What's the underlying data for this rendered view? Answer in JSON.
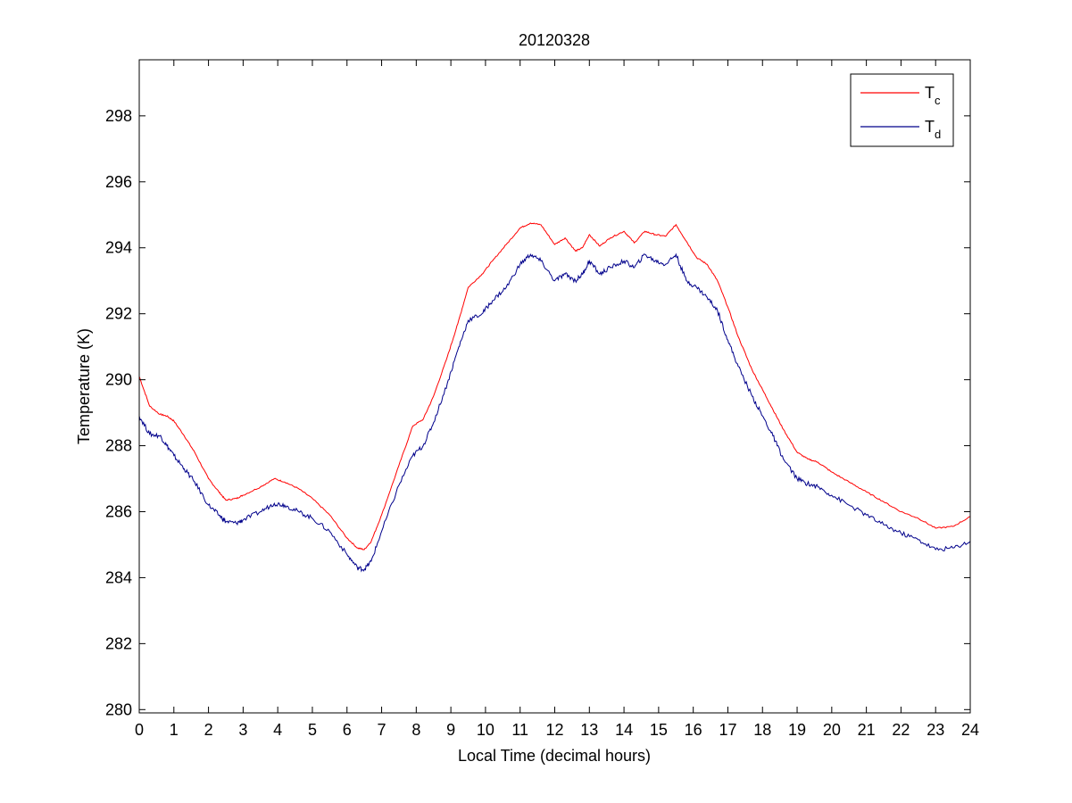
{
  "chart_data": {
    "type": "line",
    "title": "20120328",
    "xlabel": "Local Time (decimal hours)",
    "ylabel": "Temperature (K)",
    "xlim": [
      0,
      24
    ],
    "ylim": [
      279.9,
      299.7
    ],
    "xticks": [
      0,
      1,
      2,
      3,
      4,
      5,
      6,
      7,
      8,
      9,
      10,
      11,
      12,
      13,
      14,
      15,
      16,
      17,
      18,
      19,
      20,
      21,
      22,
      23,
      24
    ],
    "yticks": [
      280,
      282,
      284,
      286,
      288,
      290,
      292,
      294,
      296,
      298
    ],
    "grid": false,
    "legend_position": "top-right",
    "series": [
      {
        "name": "Tc",
        "color": "#ff0000",
        "x": [
          0,
          0.3,
          0.6,
          0.8,
          1,
          1.3,
          1.6,
          2,
          2.3,
          2.5,
          2.8,
          3,
          3.5,
          3.9,
          4.2,
          4.6,
          5,
          5.5,
          6,
          6.3,
          6.5,
          6.7,
          7,
          7.5,
          7.9,
          8.2,
          8.5,
          8.9,
          9.2,
          9.5,
          9.9,
          10.2,
          10.6,
          11,
          11.3,
          11.6,
          12,
          12.3,
          12.6,
          12.8,
          13,
          13.3,
          13.6,
          14,
          14.3,
          14.6,
          14.9,
          15.2,
          15.5,
          15.8,
          16.1,
          16.4,
          16.7,
          17,
          17.3,
          17.7,
          18,
          18.3,
          18.6,
          19,
          19.3,
          19.6,
          20,
          20.5,
          21,
          21.5,
          22,
          22.5,
          23,
          23.5,
          24
        ],
        "y": [
          290.1,
          289.2,
          288.95,
          288.9,
          288.75,
          288.3,
          287.8,
          287.0,
          286.6,
          286.35,
          286.4,
          286.5,
          286.75,
          287.0,
          286.9,
          286.7,
          286.4,
          285.9,
          285.2,
          284.9,
          284.85,
          285.1,
          285.9,
          287.4,
          288.6,
          288.8,
          289.5,
          290.7,
          291.7,
          292.8,
          293.2,
          293.6,
          294.1,
          294.6,
          294.75,
          294.7,
          294.1,
          294.3,
          293.9,
          294.0,
          294.4,
          294.05,
          294.3,
          294.5,
          294.15,
          294.5,
          294.4,
          294.35,
          294.7,
          294.2,
          293.7,
          293.5,
          293.0,
          292.2,
          291.3,
          290.3,
          289.7,
          289.1,
          288.5,
          287.8,
          287.6,
          287.5,
          287.2,
          286.9,
          286.6,
          286.3,
          286.0,
          285.8,
          285.5,
          285.55,
          285.85
        ]
      },
      {
        "name": "Td",
        "color": "#00008b",
        "x": [
          0,
          0.3,
          0.6,
          0.8,
          1,
          1.3,
          1.6,
          2,
          2.3,
          2.5,
          2.8,
          3,
          3.5,
          3.9,
          4.2,
          4.6,
          5,
          5.5,
          6,
          6.3,
          6.5,
          6.7,
          7,
          7.5,
          7.9,
          8.2,
          8.5,
          8.9,
          9.2,
          9.5,
          9.9,
          10.2,
          10.6,
          11,
          11.3,
          11.6,
          12,
          12.3,
          12.6,
          12.8,
          13,
          13.3,
          13.6,
          14,
          14.3,
          14.6,
          14.9,
          15.2,
          15.5,
          15.8,
          16.1,
          16.4,
          16.7,
          17,
          17.3,
          17.7,
          18,
          18.3,
          18.6,
          19,
          19.3,
          19.6,
          20,
          20.5,
          21,
          21.5,
          22,
          22.5,
          23,
          23.5,
          24
        ],
        "y": [
          288.9,
          288.35,
          288.3,
          288.0,
          287.7,
          287.3,
          286.9,
          286.2,
          285.9,
          285.7,
          285.65,
          285.75,
          286.0,
          286.25,
          286.2,
          286.0,
          285.8,
          285.4,
          284.7,
          284.3,
          284.25,
          284.5,
          285.4,
          286.8,
          287.7,
          288.0,
          288.7,
          289.9,
          290.9,
          291.8,
          292.0,
          292.4,
          292.8,
          293.5,
          293.8,
          293.6,
          293.0,
          293.2,
          293.0,
          293.2,
          293.6,
          293.2,
          293.4,
          293.6,
          293.4,
          293.8,
          293.6,
          293.5,
          293.8,
          293.0,
          292.8,
          292.5,
          292.1,
          291.2,
          290.4,
          289.5,
          288.9,
          288.3,
          287.6,
          287.0,
          286.85,
          286.75,
          286.5,
          286.2,
          285.9,
          285.6,
          285.35,
          285.15,
          284.85,
          284.9,
          285.1
        ]
      }
    ]
  }
}
